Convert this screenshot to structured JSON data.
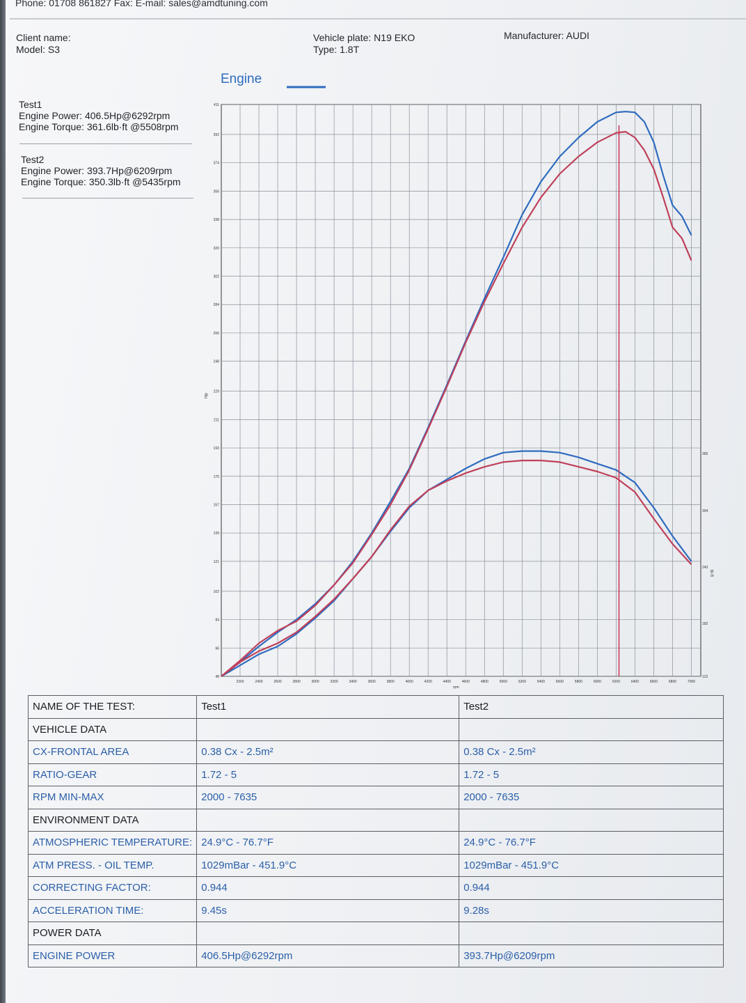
{
  "contact": {
    "text": "Phone: 01708 861827 Fax:  E-mail: sales@amdtuning.com"
  },
  "header": {
    "client_name": "Client name:",
    "model": "Model: S3",
    "vehicle_plate": "Vehicle plate: N19 EKO",
    "type": "Type: 1.8T",
    "manufacturer": "Manufacturer: AUDI"
  },
  "tests": [
    {
      "name": "Test1",
      "power": "Engine Power: 406.5Hp@6292rpm",
      "torque": "Engine Torque: 361.6lb·ft @5508rpm"
    },
    {
      "name": "Test2",
      "power": "Engine Power: 393.7Hp@6209rpm",
      "torque": "Engine Torque: 350.3lb·ft @5435rpm"
    }
  ],
  "colors": {
    "test1": "#2f6bbf",
    "test2": "#c0405a",
    "marker": "#c83a5a",
    "grid": "#8a9099"
  },
  "chart_data": {
    "type": "line",
    "title": "Engine",
    "xlabel": "rpm",
    "ylabel": "Hp",
    "y2label": "lb·ft",
    "xlim": [
      2000,
      7100
    ],
    "ylim": [
      48,
      411
    ],
    "x_ticks": [
      2200,
      2400,
      2600,
      2800,
      3000,
      3200,
      3400,
      3600,
      3800,
      4000,
      4200,
      4400,
      4600,
      4800,
      5000,
      5200,
      5400,
      5600,
      5800,
      6000,
      6200,
      6400,
      6600,
      6800,
      7000
    ],
    "y_ticks": [
      48,
      66,
      84,
      102,
      121,
      139,
      157,
      175,
      193,
      211,
      229,
      248,
      266,
      284,
      302,
      320,
      338,
      356,
      374,
      392,
      411
    ],
    "y2_ticks": [
      "122",
      "182",
      "243",
      "304",
      "365"
    ],
    "grid": true,
    "vertical_marker_rpm": 6230,
    "series": [
      {
        "name": "Test1",
        "kind": "power",
        "x": [
          2000,
          2200,
          2400,
          2600,
          2800,
          3000,
          3200,
          3400,
          3600,
          3800,
          4000,
          4200,
          4400,
          4600,
          4800,
          5000,
          5200,
          5400,
          5600,
          5800,
          6000,
          6200,
          6300,
          6400,
          6500,
          6600,
          6700,
          6800,
          6900,
          7000
        ],
        "y": [
          48,
          57,
          67,
          76,
          84,
          94,
          106,
          121,
          139,
          159,
          180,
          206,
          233,
          261,
          288,
          314,
          341,
          362,
          378,
          390,
          400,
          406,
          406.5,
          406,
          400,
          387,
          366,
          347,
          340,
          328
        ]
      },
      {
        "name": "Test2",
        "kind": "power",
        "x": [
          2000,
          2200,
          2400,
          2600,
          2800,
          3000,
          3200,
          3400,
          3600,
          3800,
          4000,
          4200,
          4400,
          4600,
          4800,
          5000,
          5200,
          5400,
          5600,
          5800,
          6000,
          6200,
          6300,
          6400,
          6500,
          6600,
          6700,
          6800,
          6900,
          7000
        ],
        "y": [
          48,
          58,
          69,
          77,
          83,
          93,
          106,
          120,
          138,
          157,
          179,
          205,
          232,
          260,
          286,
          310,
          333,
          352,
          367,
          378,
          387,
          393,
          393.7,
          390,
          382,
          370,
          352,
          333,
          326,
          312
        ]
      },
      {
        "name": "Test1",
        "kind": "torque",
        "x": [
          2000,
          2200,
          2400,
          2600,
          2800,
          3000,
          3200,
          3400,
          3600,
          3800,
          4000,
          4200,
          4400,
          4600,
          4800,
          5000,
          5200,
          5400,
          5600,
          5800,
          6000,
          6200,
          6400,
          6600,
          6800,
          7000
        ],
        "y": [
          48,
          55,
          62,
          67,
          75,
          85,
          96,
          110,
          124,
          140,
          155,
          166,
          173,
          180,
          186,
          190,
          191,
          191,
          190,
          187,
          183,
          179,
          171,
          155,
          137,
          121
        ]
      },
      {
        "name": "Test2",
        "kind": "torque",
        "x": [
          2000,
          2200,
          2400,
          2600,
          2800,
          3000,
          3200,
          3400,
          3600,
          3800,
          4000,
          4200,
          4400,
          4600,
          4800,
          5000,
          5200,
          5400,
          5600,
          5800,
          6000,
          6200,
          6400,
          6600,
          6800,
          7000
        ],
        "y": [
          48,
          57,
          64,
          69,
          76,
          86,
          97,
          110,
          124,
          141,
          156,
          166,
          172,
          177,
          181,
          184,
          185,
          185,
          184,
          181,
          178,
          174,
          165,
          148,
          132,
          119
        ]
      }
    ]
  },
  "table": {
    "headers": {
      "label": "NAME OF THE TEST:",
      "test1": "Test1",
      "test2": "Test2"
    },
    "rows": [
      {
        "label": "VEHICLE DATA",
        "t1": "",
        "t2": "",
        "section": true
      },
      {
        "label": "CX-FRONTAL AREA",
        "t1": "0.38 Cx - 2.5m²",
        "t2": "0.38 Cx - 2.5m²"
      },
      {
        "label": "RATIO-GEAR",
        "t1": "1.72 - 5",
        "t2": "1.72 - 5"
      },
      {
        "label": "RPM MIN-MAX",
        "t1": "2000 - 7635",
        "t2": "2000 - 7635"
      },
      {
        "label": "ENVIRONMENT DATA",
        "t1": "",
        "t2": "",
        "section": true
      },
      {
        "label": "ATMOSPHERIC TEMPERATURE:",
        "t1": "24.9°C - 76.7°F",
        "t2": "24.9°C - 76.7°F"
      },
      {
        "label": "ATM PRESS. - OIL TEMP.",
        "t1": "1029mBar - 451.9°C",
        "t2": "1029mBar - 451.9°C"
      },
      {
        "label": "CORRECTING FACTOR:",
        "t1": "0.944",
        "t2": "0.944"
      },
      {
        "label": "ACCELERATION TIME:",
        "t1": "9.45s",
        "t2": "9.28s"
      },
      {
        "label": "POWER DATA",
        "t1": "",
        "t2": "",
        "section": true
      },
      {
        "label": "ENGINE POWER",
        "t1": "406.5Hp@6292rpm",
        "t2": "393.7Hp@6209rpm"
      }
    ]
  }
}
